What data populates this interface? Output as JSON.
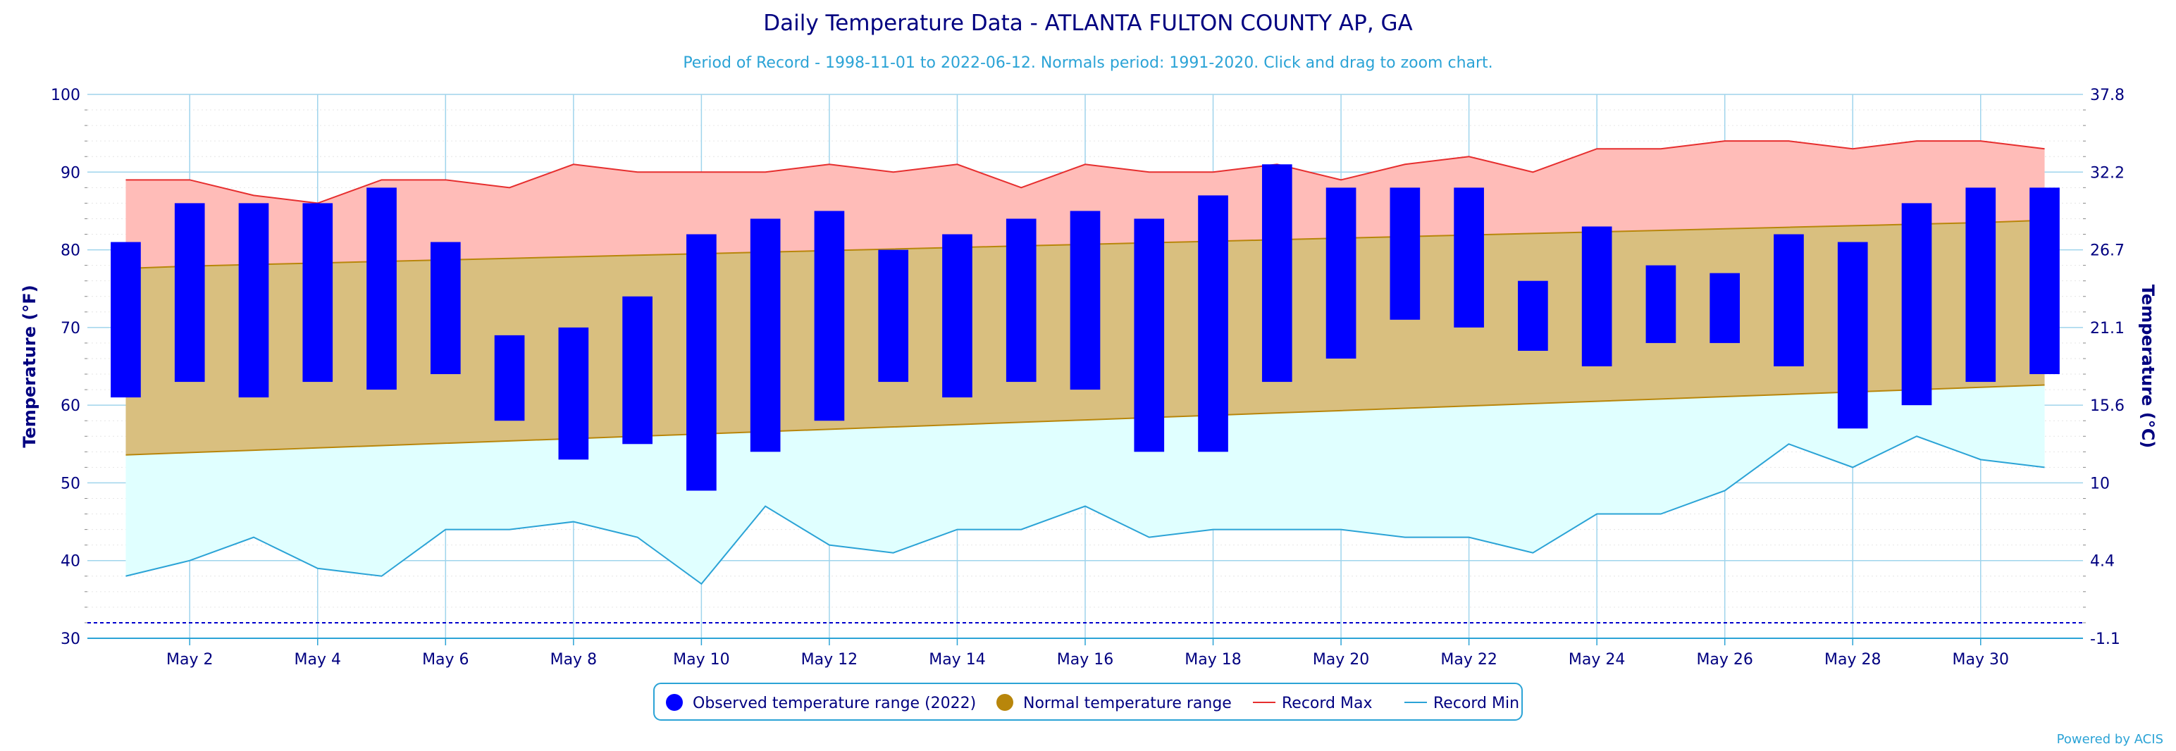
{
  "chart_data": {
    "type": "bar",
    "title": "Daily Temperature Data - ATLANTA FULTON COUNTY AP, GA",
    "subtitle": "Period of Record - 1998-11-01 to 2022-06-12. Normals period: 1991-2020. Click and drag to zoom chart.",
    "ylabel": "Temperature (°F)",
    "ylabel_right": "Temperature (°C)",
    "ylim": [
      30,
      100
    ],
    "y_ticks": [
      30,
      40,
      50,
      60,
      70,
      80,
      90,
      100
    ],
    "y_ticks_right": [
      "37.8",
      "32.2",
      "26.7",
      "21.1",
      "15.6",
      "10",
      "4.4",
      "-1.1"
    ],
    "x_day_range": [
      1,
      31
    ],
    "x_ticks": [
      {
        "day": 2,
        "label": "May 2"
      },
      {
        "day": 4,
        "label": "May 4"
      },
      {
        "day": 6,
        "label": "May 6"
      },
      {
        "day": 8,
        "label": "May 8"
      },
      {
        "day": 10,
        "label": "May 10"
      },
      {
        "day": 12,
        "label": "May 12"
      },
      {
        "day": 14,
        "label": "May 14"
      },
      {
        "day": 16,
        "label": "May 16"
      },
      {
        "day": 18,
        "label": "May 18"
      },
      {
        "day": 20,
        "label": "May 20"
      },
      {
        "day": 22,
        "label": "May 22"
      },
      {
        "day": 24,
        "label": "May 24"
      },
      {
        "day": 26,
        "label": "May 26"
      },
      {
        "day": 28,
        "label": "May 28"
      },
      {
        "day": 30,
        "label": "May 30"
      }
    ],
    "freezing_line_f": 32,
    "series": [
      {
        "name": "Observed temperature range (2022)",
        "color": "#0000ff",
        "low": [
          61,
          63,
          61,
          63,
          62,
          64,
          58,
          53,
          55,
          49,
          54,
          58,
          63,
          61,
          63,
          62,
          54,
          54,
          63,
          66,
          71,
          70,
          67,
          65,
          68,
          68,
          65,
          57,
          60,
          63,
          64
        ],
        "high": [
          81,
          86,
          86,
          86,
          88,
          81,
          69,
          70,
          74,
          82,
          84,
          85,
          80,
          82,
          84,
          85,
          84,
          87,
          91,
          88,
          88,
          88,
          76,
          83,
          78,
          77,
          82,
          81,
          86,
          88,
          88
        ]
      },
      {
        "name": "Normal temperature range",
        "color": "#b8860b",
        "low": [
          53.6,
          53.9,
          54.2,
          54.5,
          54.8,
          55.1,
          55.4,
          55.7,
          56.0,
          56.3,
          56.6,
          56.9,
          57.2,
          57.5,
          57.8,
          58.1,
          58.4,
          58.7,
          59.0,
          59.3,
          59.6,
          59.9,
          60.2,
          60.5,
          60.8,
          61.1,
          61.4,
          61.7,
          62.0,
          62.3,
          62.6
        ],
        "high": [
          77.6,
          77.9,
          78.1,
          78.3,
          78.5,
          78.7,
          78.9,
          79.1,
          79.3,
          79.5,
          79.7,
          79.9,
          80.1,
          80.3,
          80.5,
          80.7,
          80.9,
          81.1,
          81.3,
          81.5,
          81.7,
          81.9,
          82.1,
          82.3,
          82.5,
          82.7,
          82.9,
          83.1,
          83.3,
          83.5,
          83.8
        ]
      },
      {
        "name": "Record Max",
        "color": "#e62e2e",
        "values": [
          89,
          89,
          87,
          86,
          89,
          89,
          88,
          91,
          90,
          90,
          90,
          91,
          90,
          91,
          88,
          91,
          90,
          90,
          91,
          89,
          91,
          92,
          90,
          93,
          93,
          94,
          94,
          93,
          94,
          94,
          93
        ]
      },
      {
        "name": "Record Min",
        "color": "#2ba3d6",
        "values": [
          38,
          40,
          43,
          39,
          38,
          44,
          44,
          45,
          43,
          37,
          47,
          42,
          41,
          44,
          44,
          47,
          43,
          44,
          44,
          44,
          43,
          43,
          41,
          46,
          46,
          49,
          55,
          52,
          56,
          53,
          52
        ]
      }
    ],
    "legend_position": "bottom-center"
  },
  "credit": "Powered by ACIS"
}
